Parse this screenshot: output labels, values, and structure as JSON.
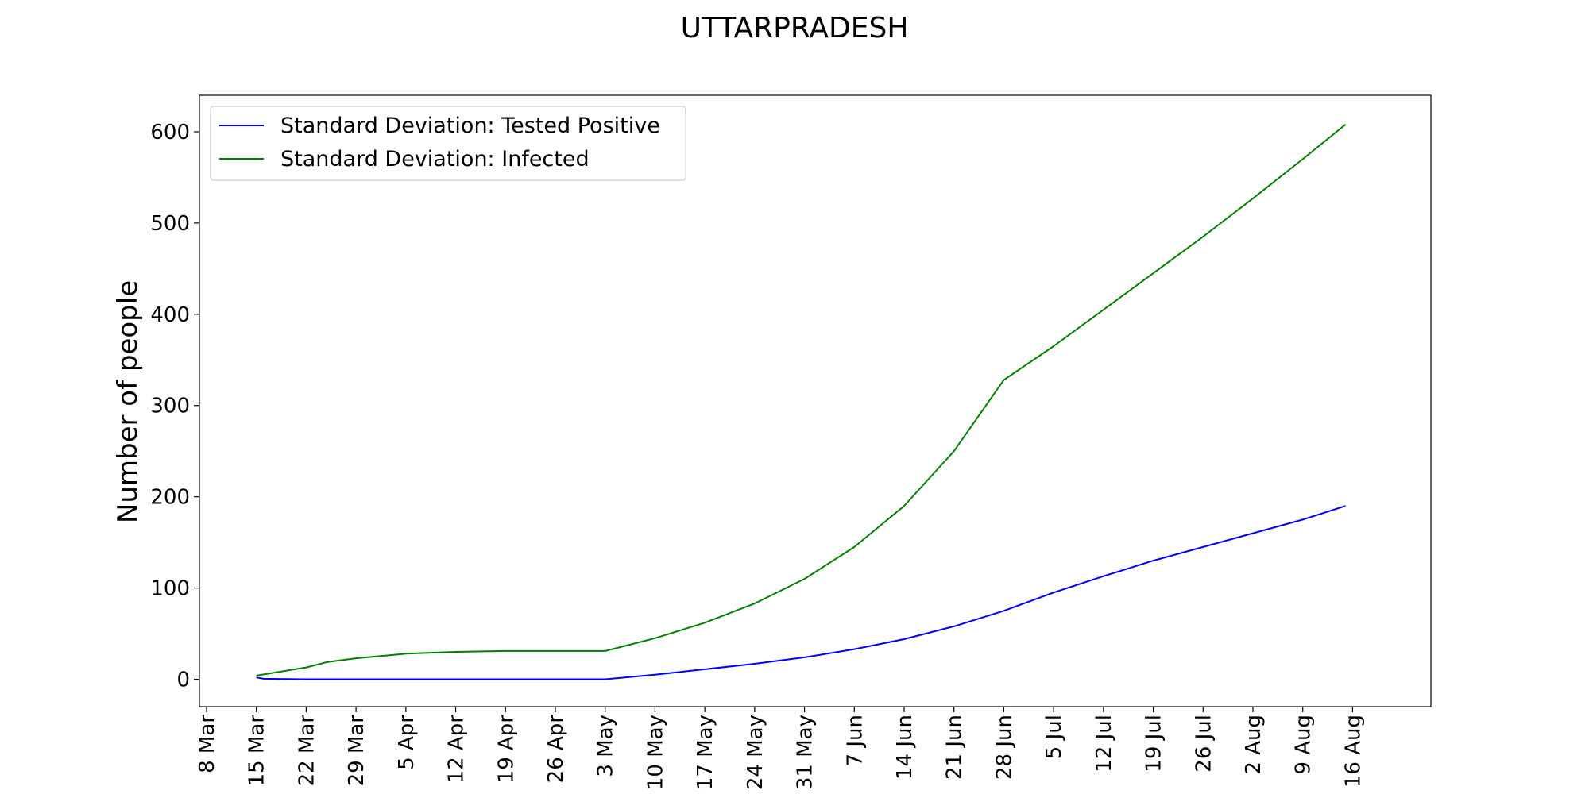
{
  "chart_data": {
    "type": "line",
    "title": "UTTARPRADESH",
    "xlabel": "",
    "ylabel": "Number of people",
    "x_axis_type": "date",
    "xlim": [
      "2020-03-07",
      "2020-08-27"
    ],
    "ylim": [
      -30,
      640
    ],
    "x_ticks": [
      {
        "date": "2020-03-08",
        "label": "8 Mar"
      },
      {
        "date": "2020-03-15",
        "label": "15 Mar"
      },
      {
        "date": "2020-03-22",
        "label": "22 Mar"
      },
      {
        "date": "2020-03-29",
        "label": "29 Mar"
      },
      {
        "date": "2020-04-05",
        "label": "5 Apr"
      },
      {
        "date": "2020-04-12",
        "label": "12 Apr"
      },
      {
        "date": "2020-04-19",
        "label": "19 Apr"
      },
      {
        "date": "2020-04-26",
        "label": "26 Apr"
      },
      {
        "date": "2020-05-03",
        "label": "3 May"
      },
      {
        "date": "2020-05-10",
        "label": "10 May"
      },
      {
        "date": "2020-05-17",
        "label": "17 May"
      },
      {
        "date": "2020-05-24",
        "label": "24 May"
      },
      {
        "date": "2020-05-31",
        "label": "31 May"
      },
      {
        "date": "2020-06-07",
        "label": "7 Jun"
      },
      {
        "date": "2020-06-14",
        "label": "14 Jun"
      },
      {
        "date": "2020-06-21",
        "label": "21 Jun"
      },
      {
        "date": "2020-06-28",
        "label": "28 Jun"
      },
      {
        "date": "2020-07-05",
        "label": "5 Jul"
      },
      {
        "date": "2020-07-12",
        "label": "12 Jul"
      },
      {
        "date": "2020-07-19",
        "label": "19 Jul"
      },
      {
        "date": "2020-07-26",
        "label": "26 Jul"
      },
      {
        "date": "2020-08-02",
        "label": "2 Aug"
      },
      {
        "date": "2020-08-09",
        "label": "9 Aug"
      },
      {
        "date": "2020-08-16",
        "label": "16 Aug"
      }
    ],
    "y_ticks": [
      0,
      100,
      200,
      300,
      400,
      500,
      600
    ],
    "grid": false,
    "legend_position": "top-left",
    "series": [
      {
        "name": "Standard Deviation: Tested Positive",
        "color": "#0000ff",
        "points": [
          {
            "x": "2020-03-15",
            "y": 2
          },
          {
            "x": "2020-03-16",
            "y": 0.5
          },
          {
            "x": "2020-03-22",
            "y": 0
          },
          {
            "x": "2020-04-05",
            "y": 0
          },
          {
            "x": "2020-04-19",
            "y": 0
          },
          {
            "x": "2020-05-03",
            "y": 0
          },
          {
            "x": "2020-05-10",
            "y": 5
          },
          {
            "x": "2020-05-17",
            "y": 11
          },
          {
            "x": "2020-05-24",
            "y": 17
          },
          {
            "x": "2020-05-31",
            "y": 24
          },
          {
            "x": "2020-06-07",
            "y": 33
          },
          {
            "x": "2020-06-14",
            "y": 44
          },
          {
            "x": "2020-06-21",
            "y": 58
          },
          {
            "x": "2020-06-28",
            "y": 75
          },
          {
            "x": "2020-07-05",
            "y": 95
          },
          {
            "x": "2020-07-12",
            "y": 113
          },
          {
            "x": "2020-07-19",
            "y": 130
          },
          {
            "x": "2020-07-26",
            "y": 145
          },
          {
            "x": "2020-08-02",
            "y": 160
          },
          {
            "x": "2020-08-09",
            "y": 175
          },
          {
            "x": "2020-08-15",
            "y": 190
          }
        ]
      },
      {
        "name": "Standard Deviation: Infected",
        "color": "#008000",
        "points": [
          {
            "x": "2020-03-15",
            "y": 4
          },
          {
            "x": "2020-03-22",
            "y": 13
          },
          {
            "x": "2020-03-25",
            "y": 19
          },
          {
            "x": "2020-03-29",
            "y": 23
          },
          {
            "x": "2020-04-05",
            "y": 28
          },
          {
            "x": "2020-04-12",
            "y": 30
          },
          {
            "x": "2020-04-19",
            "y": 31
          },
          {
            "x": "2020-04-26",
            "y": 31
          },
          {
            "x": "2020-05-03",
            "y": 31
          },
          {
            "x": "2020-05-10",
            "y": 45
          },
          {
            "x": "2020-05-17",
            "y": 62
          },
          {
            "x": "2020-05-24",
            "y": 83
          },
          {
            "x": "2020-05-31",
            "y": 110
          },
          {
            "x": "2020-06-07",
            "y": 145
          },
          {
            "x": "2020-06-14",
            "y": 190
          },
          {
            "x": "2020-06-21",
            "y": 250
          },
          {
            "x": "2020-06-28",
            "y": 328
          },
          {
            "x": "2020-07-05",
            "y": 365
          },
          {
            "x": "2020-07-12",
            "y": 405
          },
          {
            "x": "2020-07-19",
            "y": 445
          },
          {
            "x": "2020-07-26",
            "y": 485
          },
          {
            "x": "2020-08-02",
            "y": 527
          },
          {
            "x": "2020-08-09",
            "y": 570
          },
          {
            "x": "2020-08-15",
            "y": 608
          }
        ]
      }
    ]
  }
}
